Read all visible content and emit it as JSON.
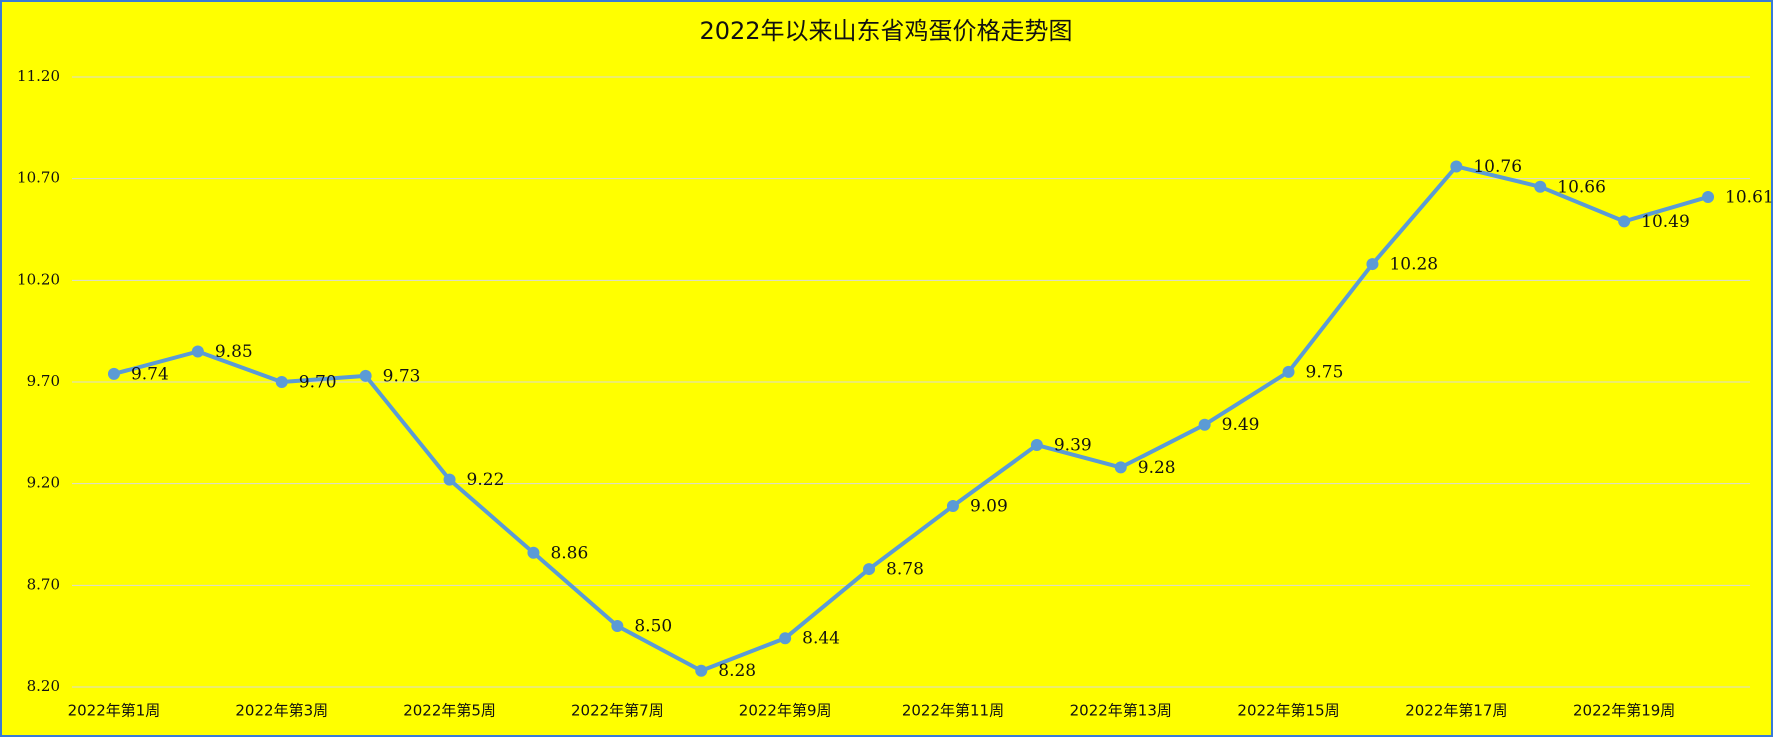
{
  "chart_data": {
    "type": "line",
    "title": "2022年以来山东省鸡蛋价格走势图",
    "categories": [
      "2022年第1周",
      null,
      "2022年第3周",
      null,
      "2022年第5周",
      null,
      "2022年第7周",
      null,
      "2022年第9周",
      null,
      "2022年第11周",
      null,
      "2022年第13周",
      null,
      "2022年第15周",
      null,
      "2022年第17周",
      null,
      "2022年第19周",
      null
    ],
    "series": [
      {
        "color": "#5b9bd5",
        "values": [
          9.74,
          9.85,
          9.7,
          9.73,
          9.22,
          8.86,
          8.5,
          8.28,
          8.44,
          8.78,
          9.09,
          9.39,
          9.28,
          9.49,
          9.75,
          10.28,
          10.76,
          10.66,
          10.49,
          10.61
        ],
        "value_labels": [
          "9.74",
          "9.85",
          "9.70",
          "9.73",
          "9.22",
          "8.86",
          "8.50",
          "8.28",
          "8.44",
          "8.78",
          "9.09",
          "9.39",
          "9.28",
          "9.49",
          "9.75",
          "10.28",
          "10.76",
          "10.66",
          "10.49",
          "10.61"
        ]
      }
    ],
    "ylim": [
      8.2,
      11.2
    ],
    "yticks": [
      {
        "value": 8.2,
        "label": "8.20"
      },
      {
        "value": 8.7,
        "label": "8.70"
      },
      {
        "value": 9.2,
        "label": "9.20"
      },
      {
        "value": 9.7,
        "label": "9.70"
      },
      {
        "value": 10.2,
        "label": "10.20"
      },
      {
        "value": 10.7,
        "label": "10.70"
      },
      {
        "value": 11.2,
        "label": "11.20"
      }
    ],
    "grid": true,
    "background": "#ffff00"
  }
}
